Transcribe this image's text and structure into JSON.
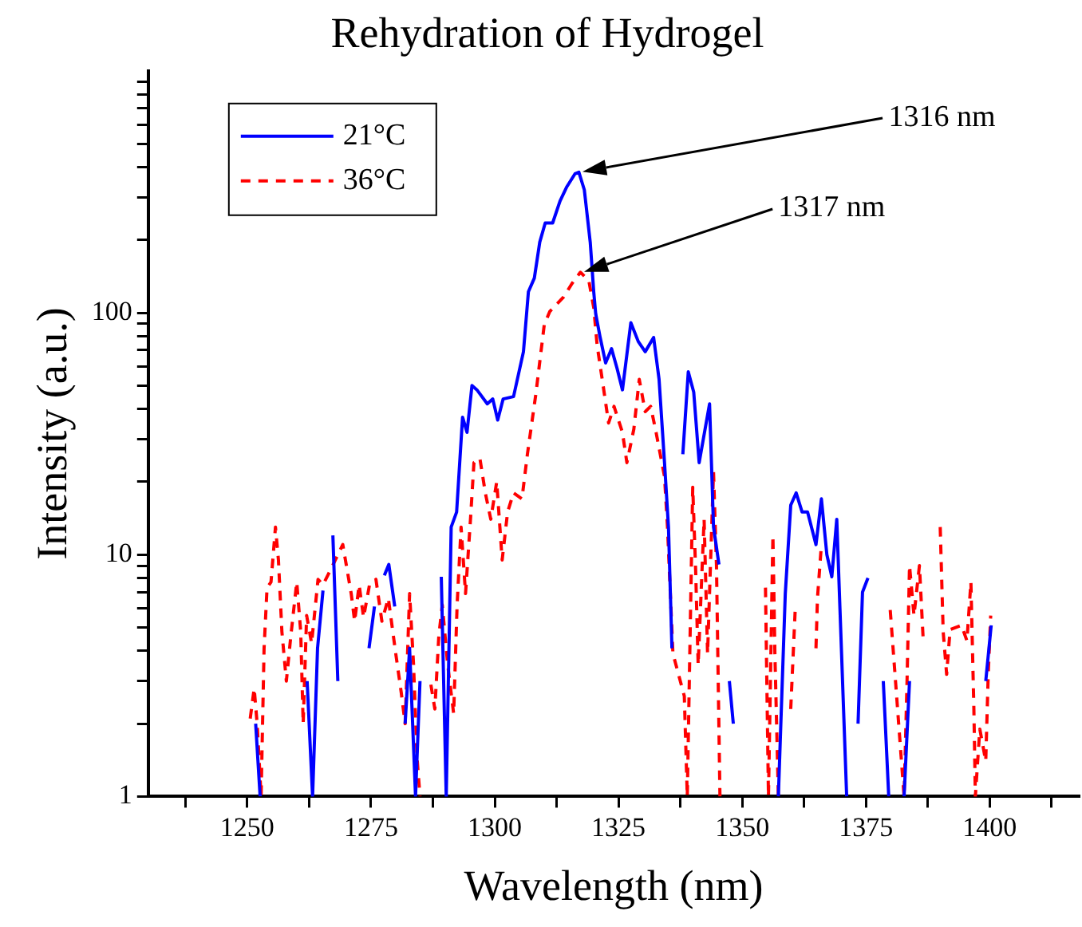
{
  "chart_data": {
    "type": "line",
    "title": "Rehydration of Hydrogel",
    "xlabel": "Wavelength (nm)",
    "ylabel": "Intensity (a.u.)",
    "xlim": [
      1230,
      1418
    ],
    "xticks": [
      {
        "value": 1237.5,
        "label": null
      },
      1250,
      {
        "value": 1262.5,
        "label": null
      },
      1275,
      {
        "value": 1287.5,
        "label": null
      },
      1300,
      {
        "value": 1312.5,
        "label": null
      },
      1325,
      {
        "value": 1337.5,
        "label": null
      },
      1350,
      {
        "value": 1362.5,
        "label": null
      },
      1375,
      {
        "value": 1387.5,
        "label": null
      },
      1400,
      {
        "value": 1412.5,
        "label": null
      }
    ],
    "ylim": [
      1,
      1000
    ],
    "log": true,
    "yticks": [
      1,
      {
        "value": 2,
        "label": null
      },
      {
        "value": 3,
        "label": null
      },
      {
        "value": 4,
        "label": null
      },
      {
        "value": 5,
        "label": null
      },
      {
        "value": 6,
        "label": null
      },
      {
        "value": 7,
        "label": null
      },
      {
        "value": 8,
        "label": null
      },
      {
        "value": 9,
        "label": null
      },
      10,
      {
        "value": 20,
        "label": null
      },
      {
        "value": 30,
        "label": null
      },
      {
        "value": 40,
        "label": null
      },
      {
        "value": 50,
        "label": null
      },
      {
        "value": 60,
        "label": null
      },
      {
        "value": 70,
        "label": null
      },
      {
        "value": 80,
        "label": null
      },
      {
        "value": 90,
        "label": null
      },
      100,
      {
        "value": 200,
        "label": null
      },
      {
        "value": 300,
        "label": null
      },
      {
        "value": 400,
        "label": null
      },
      {
        "value": 500,
        "label": null
      },
      {
        "value": 600,
        "label": null
      },
      {
        "value": 700,
        "label": null
      },
      {
        "value": 800,
        "label": null
      },
      {
        "value": 900,
        "label": null
      }
    ],
    "grid": false,
    "legend": "top left",
    "marker": "none",
    "annotations": [
      "1316 nm",
      "1317 nm"
    ],
    "series": [
      {
        "name": "21°C",
        "color": "#0000ff",
        "line_style": "solid",
        "x": [
          1251.7,
          1252.6,
          1257,
          1262.1,
          1263.2,
          1264.2,
          1265.3,
          1266.3,
          1267.3,
          1268.3,
          1271,
          1274.6,
          1275.7,
          1276.7,
          1277.7,
          1278.6,
          1279.8,
          1281,
          1281.9,
          1282.8,
          1284.0,
          1284.9,
          1287,
          1289.2,
          1290.2,
          1291.2,
          1292.3,
          1293.5,
          1294.4,
          1295.4,
          1296.4,
          1298.5,
          1299.6,
          1300.6,
          1301.7,
          1303.8,
          1305.8,
          1306.8,
          1308,
          1309.1,
          1310.2,
          1311.7,
          1313.2,
          1314.5,
          1316.2,
          1317,
          1318.1,
          1319.3,
          1320,
          1320.4,
          1321.3,
          1322.4,
          1323.6,
          1324.7,
          1325.8,
          1327.5,
          1329,
          1330.4,
          1332.1,
          1333.2,
          1334.3,
          1335.1,
          1335.8,
          1337,
          1338,
          1339.1,
          1340.2,
          1341.3,
          1343.4,
          1344.2,
          1345.3,
          1346.3,
          1347.4,
          1348.2,
          1352,
          1357.3,
          1358.7,
          1359.8,
          1360.9,
          1362.1,
          1363.2,
          1364.9,
          1366,
          1367.1,
          1368.1,
          1369.1,
          1371.1,
          1372,
          1373.4,
          1374.3,
          1375.4,
          1377,
          1378.5,
          1379.6,
          1381,
          1382.7,
          1383.8,
          1390,
          1399.2,
          1400.3
        ],
        "values": [
          2.0,
          1,
          null,
          3.0,
          1,
          4.1,
          7.1,
          null,
          12,
          3.0,
          null,
          4.1,
          6.1,
          null,
          8.2,
          9.1,
          6.1,
          null,
          2.0,
          4.1,
          1,
          3.0,
          null,
          8.1,
          1,
          13,
          15,
          37,
          32,
          50,
          48,
          42,
          44,
          36,
          44,
          45,
          69,
          122,
          139,
          196,
          235,
          235,
          290,
          330,
          375,
          381,
          322,
          195,
          122,
          99,
          79,
          62,
          71,
          59,
          48,
          91,
          76,
          69,
          79,
          53,
          24,
          13,
          4.1,
          null,
          26,
          57,
          47,
          24,
          42,
          13,
          9.1,
          null,
          3.0,
          2.0,
          null,
          1,
          6.9,
          16,
          18,
          15,
          15,
          11,
          17,
          10,
          8.1,
          14,
          1,
          null,
          2.0,
          7.0,
          8.0,
          null,
          3.0,
          1,
          null,
          1,
          3.0,
          null,
          3.0,
          5.1
        ]
      },
      {
        "name": "36°C",
        "color": "#ff0000",
        "line_style": "dashed",
        "x": [
          1250.6,
          1251.4,
          1252,
          1252.8,
          1253.4,
          1254,
          1254.8,
          1255.7,
          1256.3,
          1257,
          1257.9,
          1258.8,
          1260,
          1260.8,
          1261.3,
          1262,
          1263,
          1264.3,
          1265.3,
          1267,
          1269.3,
          1271,
          1271.7,
          1272.6,
          1273.5,
          1274.7,
          1276,
          1277.2,
          1278.5,
          1280,
          1281.1,
          1281.9,
          1282.8,
          1283.6,
          1284.3,
          1284.9,
          1286,
          1287.1,
          1287.9,
          1288.7,
          1289.4,
          1290.5,
          1291.7,
          1292.4,
          1293.2,
          1294.1,
          1295.1,
          1295.8,
          1297,
          1298.1,
          1299.2,
          1300.4,
          1301.5,
          1302.6,
          1303.8,
          1305.5,
          1306.6,
          1308.3,
          1310,
          1311.1,
          1313.9,
          1315.6,
          1317.3,
          1319,
          1320,
          1320.7,
          1321.9,
          1323,
          1324.1,
          1325.8,
          1326.7,
          1328.1,
          1329.2,
          1330.4,
          1331.5,
          1332.6,
          1334.3,
          1334.9,
          1336,
          1338.3,
          1338.9,
          1340,
          1340.6,
          1341.1,
          1342.3,
          1343,
          1344.2,
          1344.8,
          1345.5,
          1350,
          1354.7,
          1355.3,
          1356.2,
          1356.6,
          1357.3,
          1358.5,
          1359.8,
          1360.7,
          1362,
          1364.9,
          1365.2,
          1366,
          1372,
          1379.9,
          1380.4,
          1382.7,
          1383.3,
          1383.8,
          1384.7,
          1385.8,
          1386.6,
          1388,
          1390,
          1390.6,
          1391.3,
          1392,
          1394.3,
          1395.4,
          1396.2,
          1396.8,
          1397.1,
          1398,
          1399.2,
          1399.7,
          1400.2
        ],
        "values": [
          2.1,
          2.8,
          2.0,
          1,
          4.1,
          7.3,
          7.7,
          13,
          9.5,
          4.8,
          3.0,
          4.6,
          7.7,
          4.8,
          2.0,
          5.6,
          4.3,
          7.9,
          7.5,
          8.8,
          11,
          6.9,
          5.3,
          7.5,
          5.5,
          7.5,
          7.9,
          5.3,
          6.6,
          3.9,
          2.7,
          2.0,
          6.9,
          3.5,
          1.45,
          1,
          null,
          2.9,
          2.3,
          4.6,
          6.2,
          3.5,
          2.2,
          6.2,
          13,
          6.9,
          14,
          24,
          25,
          18,
          14,
          20,
          9.5,
          15,
          18,
          17,
          26,
          46,
          89,
          101,
          116,
          132,
          147,
          136,
          105,
          73,
          50,
          35,
          41,
          32,
          24,
          33,
          53,
          39,
          41,
          32,
          21,
          13,
          3.9,
          2.6,
          1,
          19,
          8.5,
          3.5,
          14,
          3.9,
          22,
          9.0,
          1,
          null,
          7.3,
          1,
          12,
          3.9,
          1,
          null,
          2.3,
          5.9,
          null,
          4.1,
          6.6,
          11,
          null,
          5.9,
          4.3,
          1,
          3.0,
          9,
          5.6,
          9,
          4.3,
          null,
          13,
          4.8,
          3.2,
          4.9,
          5.1,
          4.4,
          7.7,
          2.3,
          1,
          1.9,
          1.4,
          3.2,
          5.6
        ]
      }
    ]
  }
}
